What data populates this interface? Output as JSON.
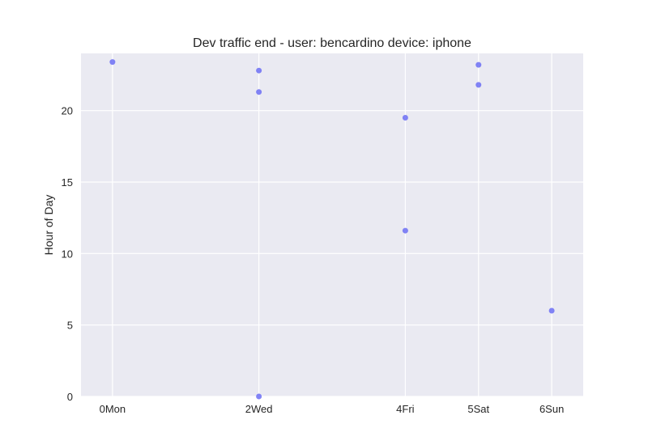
{
  "chart_data": {
    "type": "scatter",
    "title": "Dev traffic end - user: bencardino device: iphone",
    "xlabel": "",
    "ylabel": "Hour of Day",
    "x_ticks": [
      {
        "value": 0,
        "label": "0Mon"
      },
      {
        "value": 2,
        "label": "2Wed"
      },
      {
        "value": 4,
        "label": "4Fri"
      },
      {
        "value": 5,
        "label": "5Sat"
      },
      {
        "value": 6,
        "label": "6Sun"
      }
    ],
    "y_ticks": [
      0,
      5,
      10,
      15,
      20
    ],
    "xlim": [
      -0.43,
      6.43
    ],
    "ylim": [
      0,
      24
    ],
    "grid": true,
    "colors": {
      "point": "#6c6ff5",
      "background": "#eaeaf2",
      "grid": "#ffffff"
    },
    "points": [
      {
        "x": 0,
        "y": 23.4
      },
      {
        "x": 2,
        "y": 22.8
      },
      {
        "x": 2,
        "y": 21.3
      },
      {
        "x": 2,
        "y": 0.0
      },
      {
        "x": 4,
        "y": 19.5
      },
      {
        "x": 4,
        "y": 11.6
      },
      {
        "x": 5,
        "y": 23.2
      },
      {
        "x": 5,
        "y": 21.8
      },
      {
        "x": 6,
        "y": 6.0
      }
    ]
  }
}
